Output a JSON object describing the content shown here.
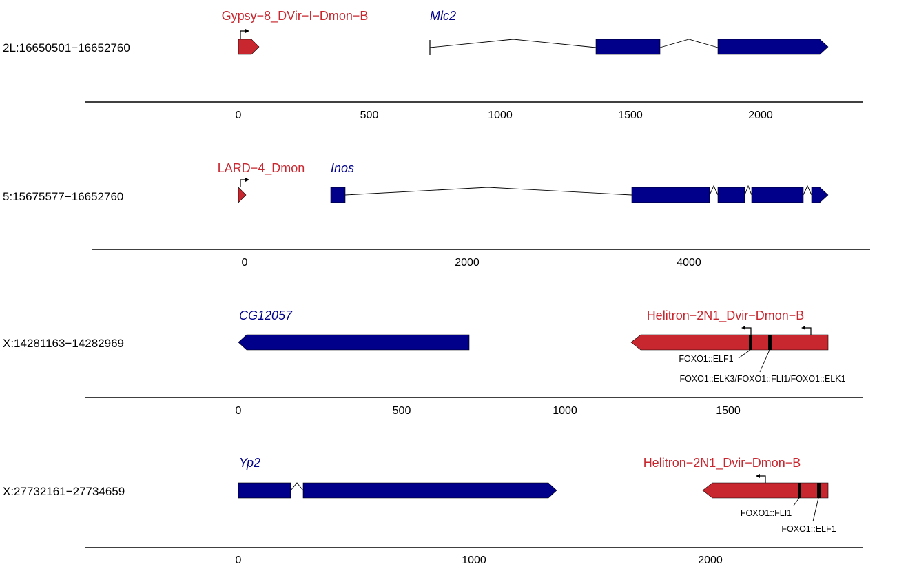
{
  "colors": {
    "gene": "#00008b",
    "te": "#c8272f",
    "motif": "#000000",
    "axis": "#000000"
  },
  "panels": [
    {
      "region": "2L:16650501−16652760",
      "ticks": [
        {
          "value": 0,
          "label": "0"
        },
        {
          "value": 500,
          "label": "500"
        },
        {
          "value": 1000,
          "label": "1000"
        },
        {
          "value": 1500,
          "label": "1500"
        },
        {
          "value": 2000,
          "label": "2000"
        }
      ],
      "features": [
        {
          "kind": "te",
          "label": "Gypsy−8_DVir−I−Dmon−B",
          "strand": "+",
          "blocks": [
            [
              0,
              80
            ]
          ],
          "tss_arrow": true
        },
        {
          "kind": "gene",
          "label": "Mlc2",
          "strand": "+",
          "start_tick": 735,
          "blocks": [
            [
              1370,
              1615
            ],
            [
              1840,
              2240
            ]
          ]
        }
      ]
    },
    {
      "region": "5:15675577−16652760",
      "ticks": [
        {
          "value": 0,
          "label": "0"
        },
        {
          "value": 2000,
          "label": "2000"
        },
        {
          "value": 4000,
          "label": "4000"
        }
      ],
      "features": [
        {
          "kind": "te",
          "label": "LARD−4_Dmon",
          "strand": "+",
          "blocks": [
            [
              0,
              70
            ]
          ],
          "tss_arrow": true
        },
        {
          "kind": "gene",
          "label": "Inos",
          "strand": "+",
          "blocks": [
            [
              710,
              830
            ],
            [
              3150,
              3790
            ],
            [
              3850,
              4075
            ],
            [
              4130,
              4550
            ],
            [
              4610,
              4760
            ]
          ]
        }
      ]
    },
    {
      "region": "X:14281163−14282969",
      "ticks": [
        {
          "value": 0,
          "label": "0"
        },
        {
          "value": 500,
          "label": "500"
        },
        {
          "value": 1000,
          "label": "1000"
        },
        {
          "value": 1500,
          "label": "1500"
        }
      ],
      "features": [
        {
          "kind": "gene",
          "label": "CG12057",
          "strand": "-",
          "blocks": [
            [
              0,
              710
            ]
          ]
        },
        {
          "kind": "te",
          "label": "Helitron−2N1_Dvir−Dmon−B",
          "strand": "-",
          "blocks": [
            [
              1210,
              1810
            ]
          ],
          "arrows": [
            1540,
            1730
          ],
          "motifs": [
            {
              "pos": 1570,
              "label": "FOXO1::ELF1"
            },
            {
              "pos": 1630,
              "label": "FOXO1::ELK3/FOXO1::FLI1/FOXO1::ELK1"
            }
          ]
        }
      ]
    },
    {
      "region": "X:27732161−27734659",
      "ticks": [
        {
          "value": 0,
          "label": "0"
        },
        {
          "value": 1000,
          "label": "1000"
        },
        {
          "value": 2000,
          "label": "2000"
        }
      ],
      "features": [
        {
          "kind": "gene",
          "label": "Yp2",
          "strand": "+",
          "blocks": [
            [
              0,
              225
            ],
            [
              275,
              1355
            ]
          ]
        },
        {
          "kind": "te",
          "label": "Helitron−2N1_Dvir−Dmon−B",
          "strand": "-",
          "blocks": [
            [
              1985,
              2500
            ]
          ],
          "arrows": [
            2280
          ],
          "motifs": [
            {
              "pos": 2410,
              "label": "FOXO1::FLI1"
            },
            {
              "pos": 2495,
              "label": "FOXO1::ELF1"
            }
          ]
        }
      ]
    }
  ]
}
